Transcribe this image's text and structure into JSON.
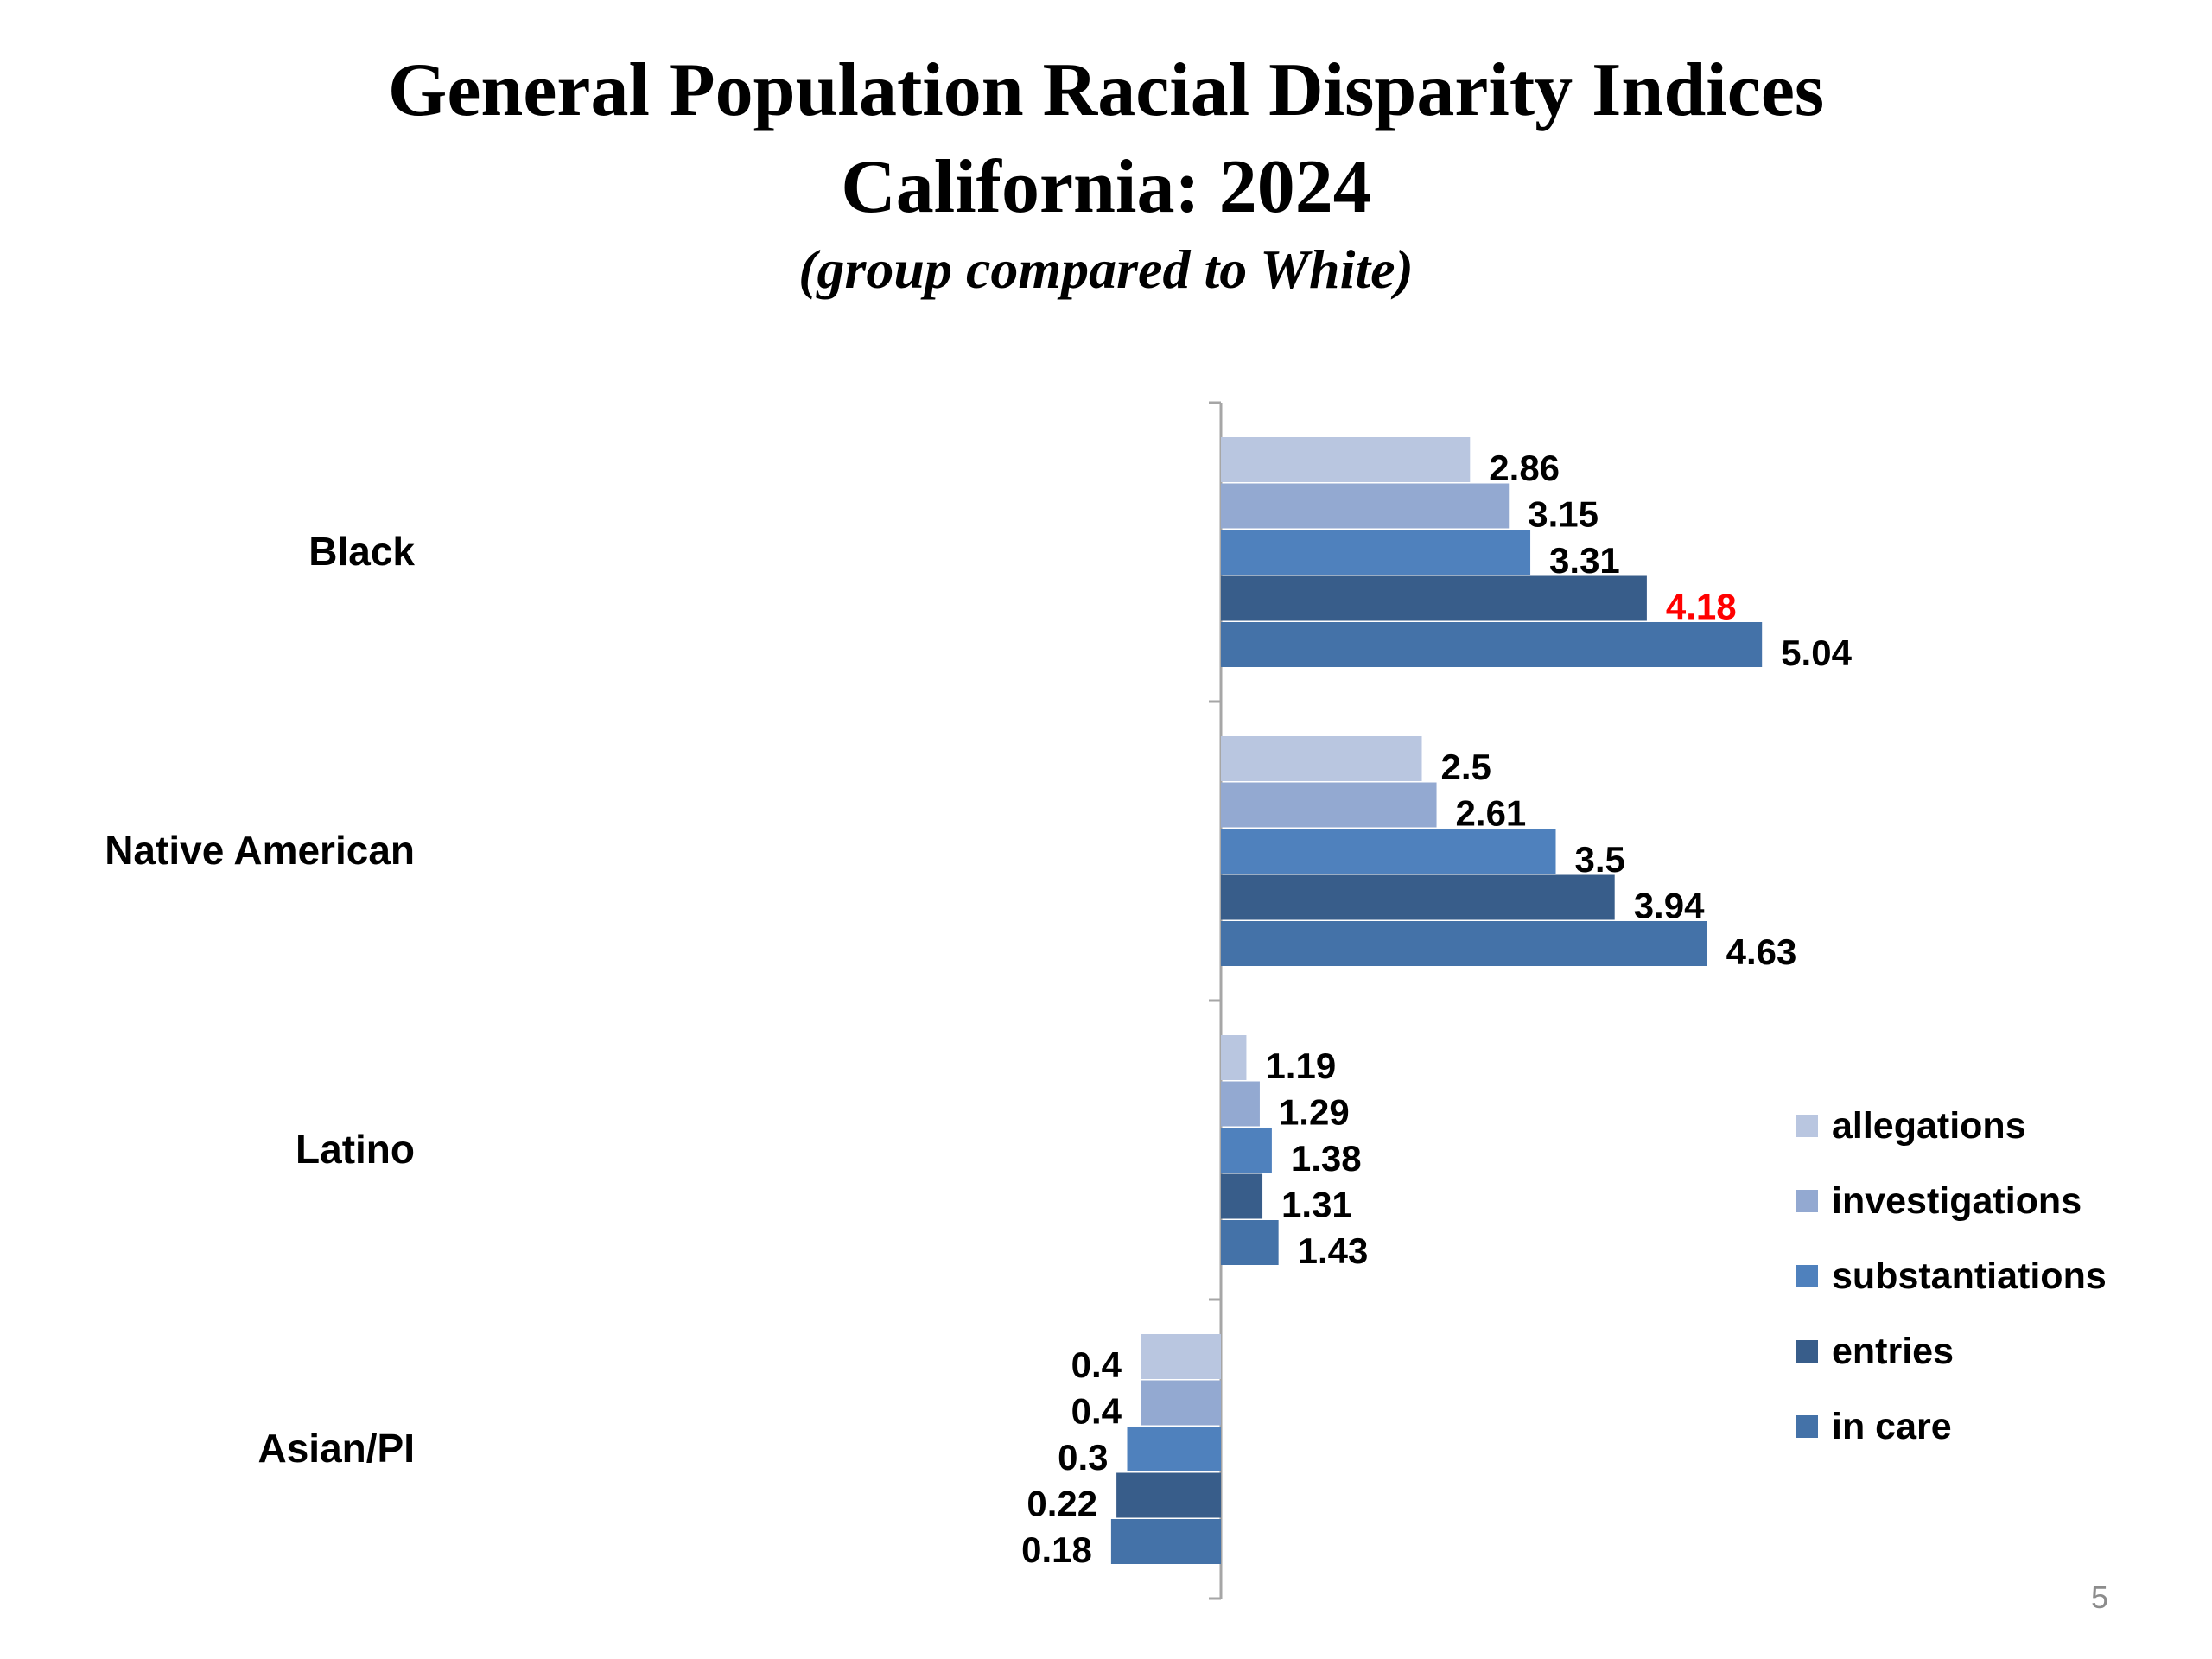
{
  "chart_data": {
    "type": "bar",
    "orientation": "horizontal",
    "title": "General Population Racial Disparity Indices",
    "subtitle": "California: 2024",
    "subtitle2": "(group compared to White)",
    "categories": [
      "Black",
      "Native American",
      "Latino",
      "Asian/PI"
    ],
    "series": [
      {
        "name": "allegations",
        "color": "#b9c6e0",
        "values": [
          2.86,
          2.5,
          1.19,
          0.4
        ]
      },
      {
        "name": "investigations",
        "color": "#93a9d1",
        "values": [
          3.15,
          2.61,
          1.29,
          0.4
        ]
      },
      {
        "name": "substantiations",
        "color": "#4f81bd",
        "values": [
          3.31,
          3.5,
          1.38,
          0.3
        ]
      },
      {
        "name": "entries",
        "color": "#385d8a",
        "values": [
          4.18,
          3.94,
          1.31,
          0.22
        ]
      },
      {
        "name": "in care",
        "color": "#4472a8",
        "values": [
          5.04,
          4.63,
          1.43,
          0.18
        ]
      }
    ],
    "highlight": {
      "category": "Black",
      "series": "entries",
      "color": "#ff0000"
    },
    "baseline": 1,
    "legend": "right",
    "grid": false
  },
  "page_number": "5"
}
